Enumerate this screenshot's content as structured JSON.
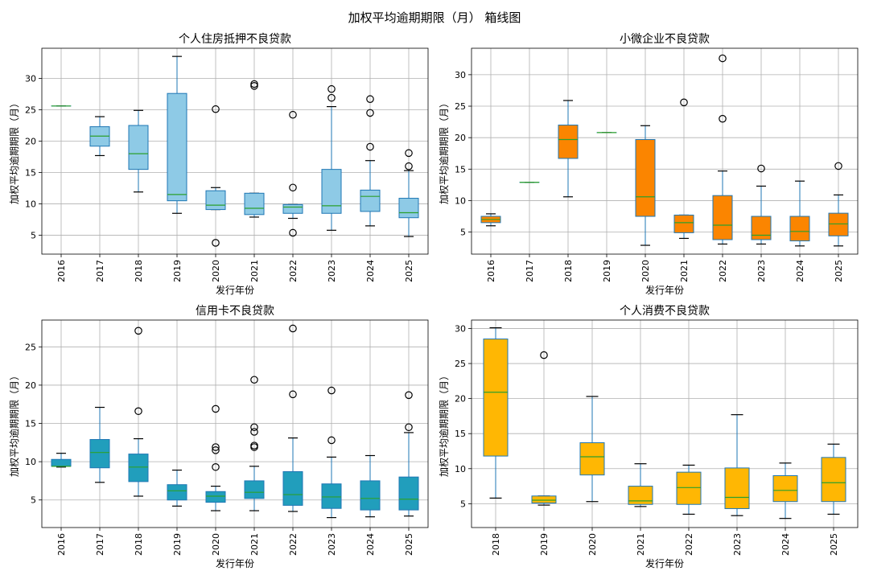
{
  "suptitle": "加权平均逾期期限（月） 箱线图",
  "chart_data": [
    {
      "type": "box",
      "title": "个人住房抵押不良贷款",
      "xlabel": "发行年份",
      "ylabel": "加权平均逾期期限（月）",
      "color": "#8ecae6",
      "ylim": [
        2.0,
        34.8
      ],
      "yticks": [
        5,
        10,
        15,
        20,
        25,
        30
      ],
      "categories": [
        "2016",
        "2017",
        "2018",
        "2019",
        "2020",
        "2021",
        "2022",
        "2023",
        "2024",
        "2025"
      ],
      "boxes": [
        {
          "min": 25.6,
          "q1": 25.6,
          "median": 25.6,
          "q3": 25.6,
          "max": 25.6,
          "outliers": []
        },
        {
          "min": 17.7,
          "q1": 19.2,
          "median": 20.8,
          "q3": 22.3,
          "max": 23.9,
          "outliers": []
        },
        {
          "min": 11.9,
          "q1": 15.5,
          "median": 18.0,
          "q3": 22.5,
          "max": 24.9,
          "outliers": []
        },
        {
          "min": 8.5,
          "q1": 10.5,
          "median": 11.5,
          "q3": 27.6,
          "max": 33.5,
          "outliers": []
        },
        {
          "min": 9.1,
          "q1": 9.1,
          "median": 9.8,
          "q3": 12.1,
          "max": 12.6,
          "outliers": [
            3.8,
            25.1
          ]
        },
        {
          "min": 7.9,
          "q1": 8.3,
          "median": 9.3,
          "q3": 11.7,
          "max": 11.7,
          "outliers": [
            28.8,
            29.1
          ]
        },
        {
          "min": 7.7,
          "q1": 8.5,
          "median": 9.5,
          "q3": 9.9,
          "max": 9.9,
          "outliers": [
            5.4,
            12.6,
            24.2
          ]
        },
        {
          "min": 5.8,
          "q1": 8.5,
          "median": 9.7,
          "q3": 15.5,
          "max": 25.5,
          "outliers": [
            26.9,
            28.3
          ]
        },
        {
          "min": 6.5,
          "q1": 8.8,
          "median": 11.2,
          "q3": 12.2,
          "max": 16.9,
          "outliers": [
            19.1,
            24.5,
            26.7
          ]
        },
        {
          "min": 4.8,
          "q1": 7.8,
          "median": 8.6,
          "q3": 10.9,
          "max": 15.3,
          "outliers": [
            16.0,
            18.1
          ]
        }
      ]
    },
    {
      "type": "box",
      "title": "小微企业不良贷款",
      "xlabel": "发行年份",
      "ylabel": "加权平均逾期期限（月）",
      "color": "#fb8500",
      "ylim": [
        1.5,
        34.2
      ],
      "yticks": [
        5,
        10,
        15,
        20,
        25,
        30
      ],
      "categories": [
        "2016",
        "2017",
        "2018",
        "2019",
        "2020",
        "2021",
        "2022",
        "2023",
        "2024",
        "2025"
      ],
      "boxes": [
        {
          "min": 6.0,
          "q1": 6.5,
          "median": 7.0,
          "q3": 7.5,
          "max": 7.9,
          "outliers": []
        },
        {
          "min": 12.9,
          "q1": 12.9,
          "median": 12.9,
          "q3": 12.9,
          "max": 12.9,
          "outliers": []
        },
        {
          "min": 10.6,
          "q1": 16.7,
          "median": 19.7,
          "q3": 22.0,
          "max": 25.9,
          "outliers": []
        },
        {
          "min": 20.8,
          "q1": 20.8,
          "median": 20.8,
          "q3": 20.8,
          "max": 20.8,
          "outliers": []
        },
        {
          "min": 2.9,
          "q1": 7.5,
          "median": 10.6,
          "q3": 19.7,
          "max": 21.9,
          "outliers": []
        },
        {
          "min": 4.0,
          "q1": 4.9,
          "median": 6.5,
          "q3": 7.7,
          "max": 7.7,
          "outliers": [
            25.6
          ]
        },
        {
          "min": 3.1,
          "q1": 3.8,
          "median": 6.1,
          "q3": 10.8,
          "max": 14.7,
          "outliers": [
            23.0,
            32.6
          ]
        },
        {
          "min": 3.1,
          "q1": 3.8,
          "median": 4.5,
          "q3": 7.5,
          "max": 12.3,
          "outliers": [
            15.1
          ]
        },
        {
          "min": 2.8,
          "q1": 3.6,
          "median": 5.1,
          "q3": 7.5,
          "max": 13.1,
          "outliers": []
        },
        {
          "min": 2.8,
          "q1": 4.4,
          "median": 6.3,
          "q3": 8.0,
          "max": 10.9,
          "outliers": [
            15.5
          ]
        }
      ]
    },
    {
      "type": "box",
      "title": "信用卡不良贷款",
      "xlabel": "发行年份",
      "ylabel": "加权平均逾期期限（月）",
      "color": "#219ebc",
      "ylim": [
        1.4,
        28.5
      ],
      "yticks": [
        5,
        10,
        15,
        20,
        25
      ],
      "categories": [
        "2016",
        "2017",
        "2018",
        "2019",
        "2020",
        "2021",
        "2022",
        "2023",
        "2024",
        "2025"
      ],
      "boxes": [
        {
          "min": 9.3,
          "q1": 9.4,
          "median": 9.4,
          "q3": 10.3,
          "max": 11.1,
          "outliers": []
        },
        {
          "min": 7.3,
          "q1": 9.2,
          "median": 11.2,
          "q3": 12.9,
          "max": 17.1,
          "outliers": []
        },
        {
          "min": 5.5,
          "q1": 7.4,
          "median": 9.3,
          "q3": 11.0,
          "max": 13.0,
          "outliers": [
            16.6,
            27.1
          ]
        },
        {
          "min": 4.2,
          "q1": 5.0,
          "median": 6.2,
          "q3": 7.0,
          "max": 8.9,
          "outliers": []
        },
        {
          "min": 3.6,
          "q1": 4.7,
          "median": 5.5,
          "q3": 6.1,
          "max": 6.8,
          "outliers": [
            9.3,
            11.5,
            11.9,
            16.9
          ]
        },
        {
          "min": 3.6,
          "q1": 5.2,
          "median": 6.0,
          "q3": 7.5,
          "max": 9.4,
          "outliers": [
            11.9,
            12.1,
            13.9,
            14.5,
            20.7
          ]
        },
        {
          "min": 3.5,
          "q1": 4.3,
          "median": 5.7,
          "q3": 8.7,
          "max": 13.1,
          "outliers": [
            18.8,
            27.4
          ]
        },
        {
          "min": 2.7,
          "q1": 3.9,
          "median": 5.4,
          "q3": 7.1,
          "max": 10.6,
          "outliers": [
            12.8,
            19.3
          ]
        },
        {
          "min": 2.8,
          "q1": 3.7,
          "median": 5.2,
          "q3": 7.5,
          "max": 10.8,
          "outliers": []
        },
        {
          "min": 2.9,
          "q1": 3.7,
          "median": 5.1,
          "q3": 8.0,
          "max": 13.8,
          "outliers": [
            14.5,
            18.7
          ]
        }
      ]
    },
    {
      "type": "box",
      "title": "个人消费不良贷款",
      "xlabel": "发行年份",
      "ylabel": "加权平均逾期期限（月）",
      "color": "#ffb703",
      "ylim": [
        1.6,
        31.2
      ],
      "yticks": [
        5,
        10,
        15,
        20,
        25,
        30
      ],
      "categories": [
        "2018",
        "2019",
        "2020",
        "2021",
        "2022",
        "2023",
        "2024",
        "2025"
      ],
      "boxes": [
        {
          "min": 5.8,
          "q1": 11.8,
          "median": 20.9,
          "q3": 28.5,
          "max": 30.1,
          "outliers": []
        },
        {
          "min": 4.8,
          "q1": 5.1,
          "median": 5.5,
          "q3": 6.1,
          "max": 6.1,
          "outliers": [
            26.2
          ]
        },
        {
          "min": 5.3,
          "q1": 9.1,
          "median": 11.7,
          "q3": 13.7,
          "max": 20.3,
          "outliers": []
        },
        {
          "min": 4.6,
          "q1": 4.9,
          "median": 5.4,
          "q3": 7.5,
          "max": 10.7,
          "outliers": []
        },
        {
          "min": 3.5,
          "q1": 4.9,
          "median": 7.3,
          "q3": 9.5,
          "max": 10.5,
          "outliers": []
        },
        {
          "min": 3.3,
          "q1": 4.3,
          "median": 5.9,
          "q3": 10.1,
          "max": 17.7,
          "outliers": []
        },
        {
          "min": 2.9,
          "q1": 5.3,
          "median": 6.9,
          "q3": 9.0,
          "max": 10.8,
          "outliers": []
        },
        {
          "min": 3.5,
          "q1": 5.3,
          "median": 8.0,
          "q3": 11.6,
          "max": 13.5,
          "outliers": []
        }
      ]
    }
  ]
}
